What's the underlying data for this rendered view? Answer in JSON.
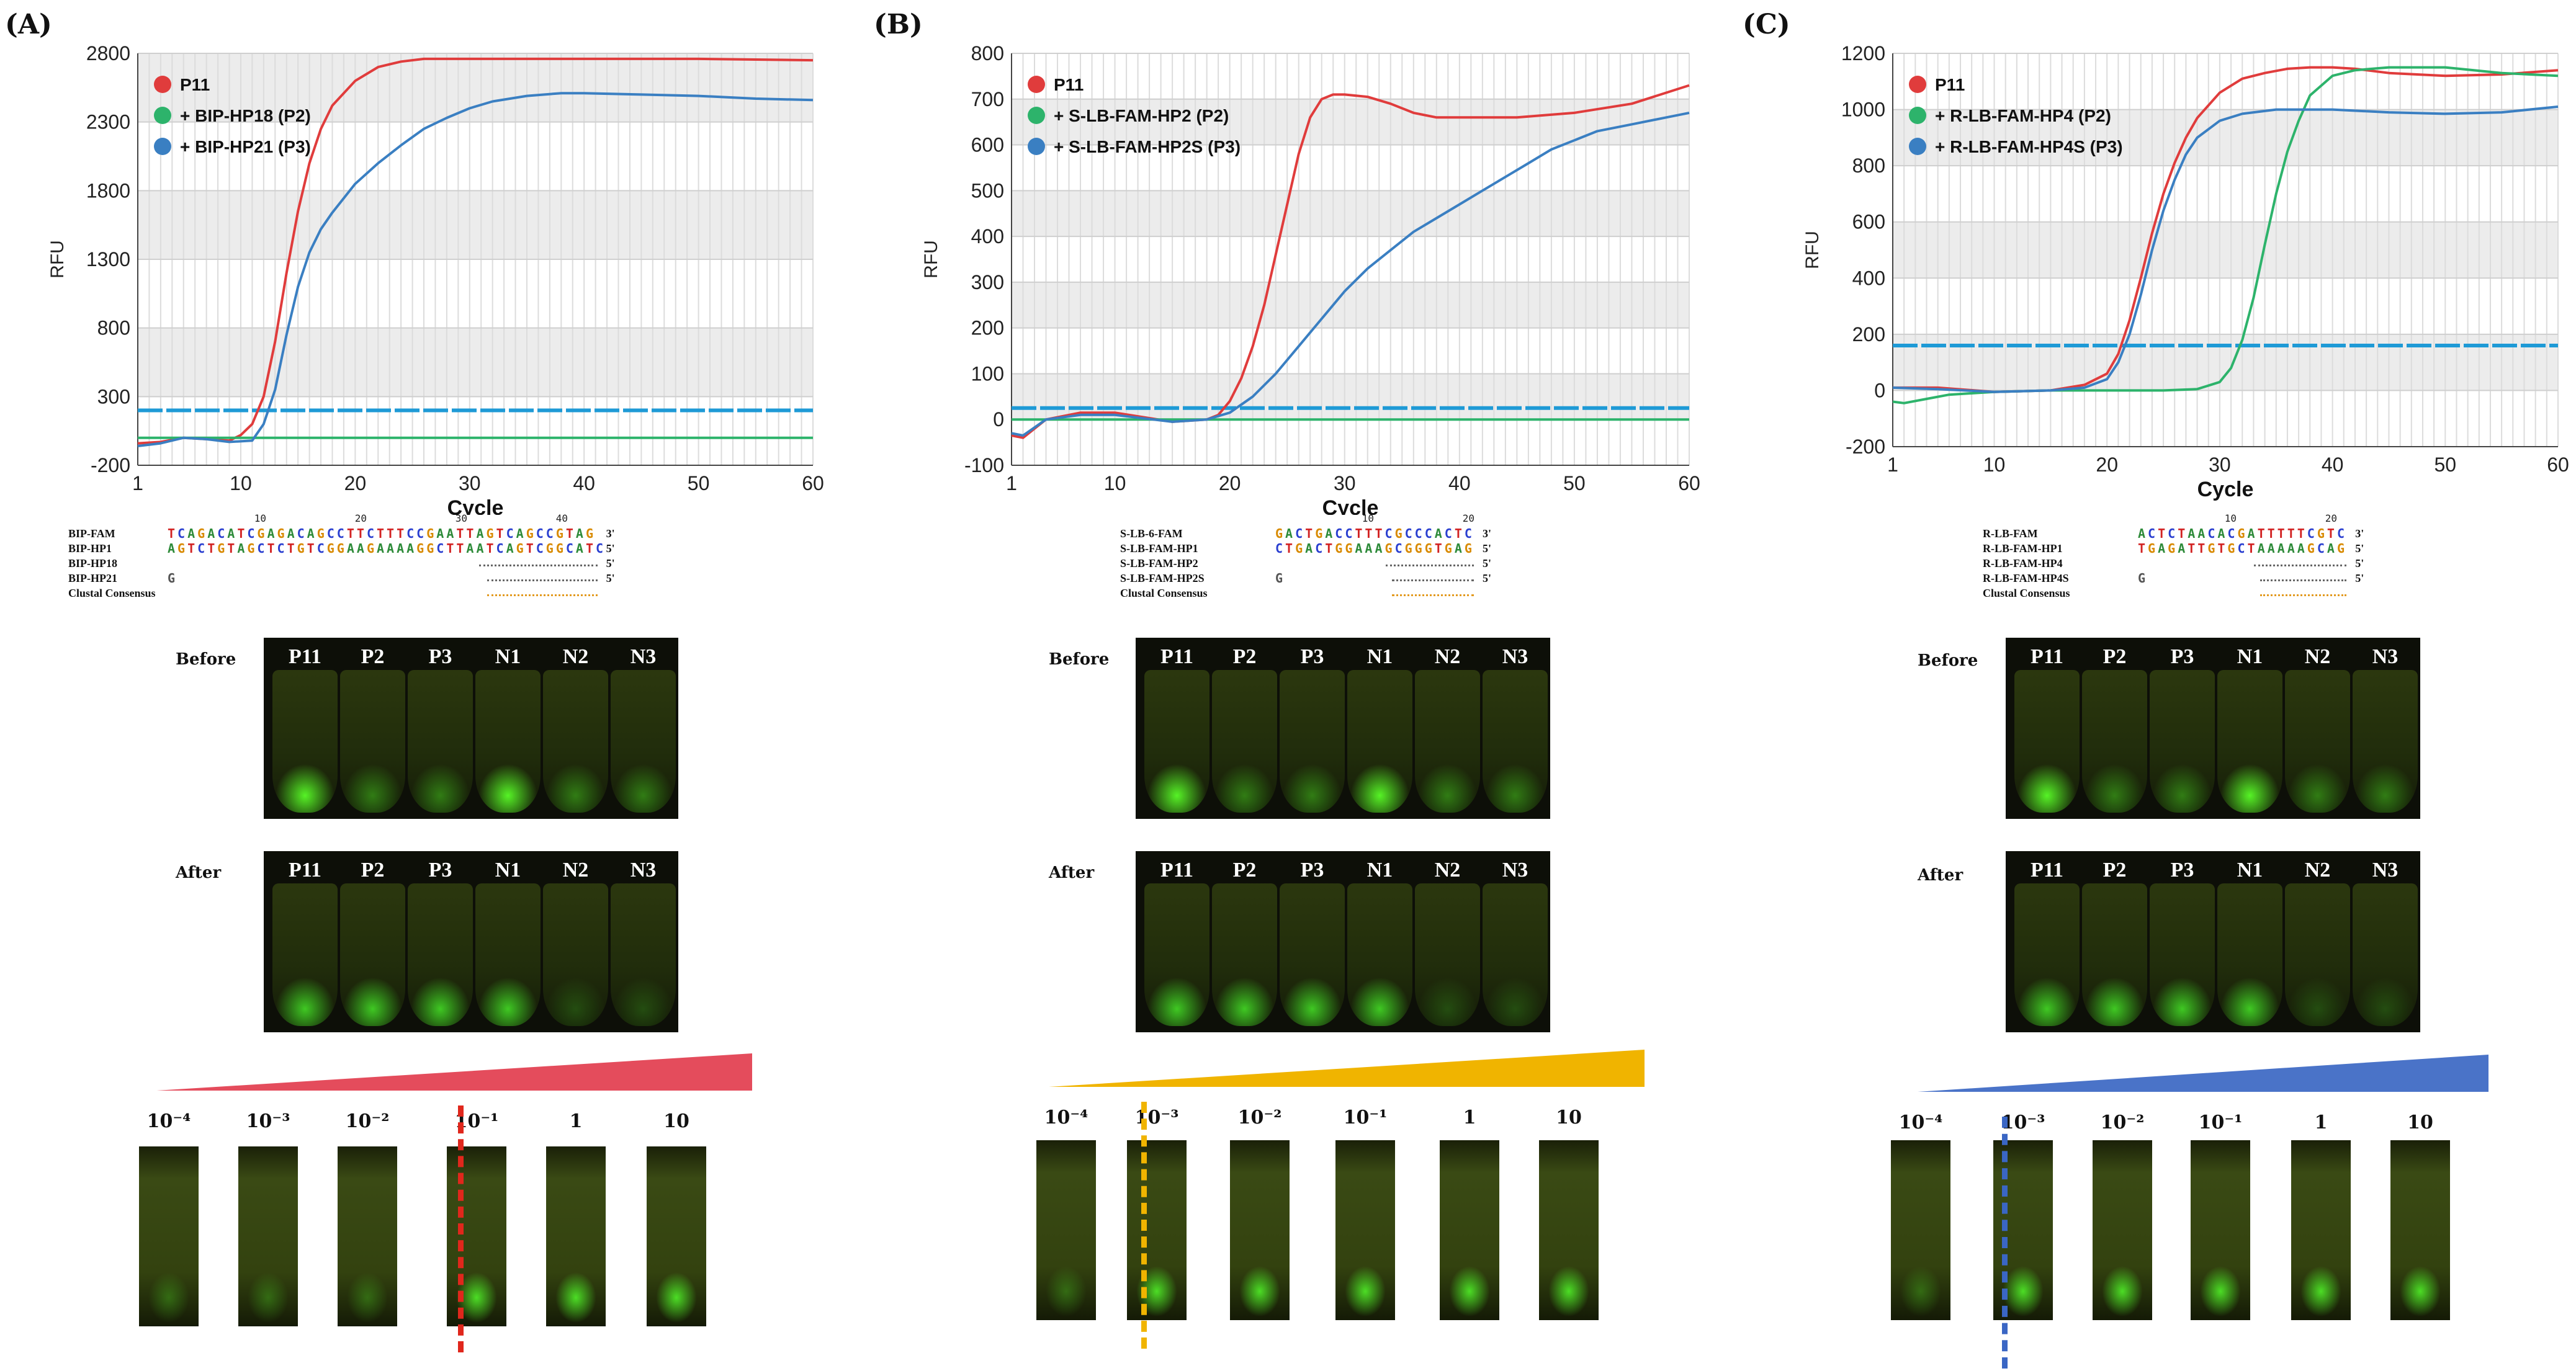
{
  "panels": [
    {
      "label": "(A)",
      "chart_data": {
        "type": "line",
        "ylabel": "RFU",
        "xlabel": "Cycle",
        "xlim": [
          1,
          60
        ],
        "ylim": [
          -200,
          2800
        ],
        "yticks": [
          -200,
          300,
          800,
          1300,
          1800,
          2300,
          2800
        ],
        "ytick_labels": [
          "-200",
          "300",
          "800",
          "1300",
          "1800",
          "2300",
          "2800"
        ],
        "xticks": [
          1,
          10,
          20,
          30,
          40,
          50,
          60
        ],
        "xtick_labels": [
          "1",
          "10",
          "20",
          "30",
          "40",
          "50",
          "60"
        ],
        "threshold": 200,
        "series": [
          {
            "name": "P11",
            "color": "#e03c3c",
            "x": [
              1,
              3,
              5,
              7,
              9,
              10,
              11,
              12,
              13,
              14,
              15,
              16,
              17,
              18,
              20,
              22,
              24,
              26,
              28,
              30,
              35,
              40,
              50,
              60
            ],
            "y": [
              -40,
              -30,
              0,
              -10,
              -20,
              20,
              100,
              300,
              700,
              1200,
              1650,
              2000,
              2250,
              2420,
              2600,
              2700,
              2740,
              2760,
              2760,
              2760,
              2760,
              2760,
              2760,
              2750
            ]
          },
          {
            "name": "+ BIP-HP18 (P2)",
            "color": "#2db36b",
            "x": [
              1,
              5,
              10,
              20,
              30,
              40,
              50,
              60
            ],
            "y": [
              0,
              0,
              0,
              0,
              0,
              0,
              0,
              0
            ]
          },
          {
            "name": "+ BIP-HP21 (P3)",
            "color": "#3a7fc2",
            "x": [
              1,
              3,
              5,
              7,
              9,
              11,
              12,
              13,
              14,
              15,
              16,
              17,
              18,
              20,
              22,
              24,
              26,
              28,
              30,
              32,
              35,
              38,
              40,
              45,
              50,
              55,
              60
            ],
            "y": [
              -60,
              -40,
              0,
              -10,
              -30,
              -20,
              100,
              350,
              750,
              1100,
              1350,
              1520,
              1640,
              1850,
              2000,
              2130,
              2250,
              2330,
              2400,
              2450,
              2490,
              2510,
              2510,
              2500,
              2490,
              2470,
              2460
            ]
          }
        ]
      },
      "alignment": {
        "ruler": [
          "10",
          "20",
          "30",
          "40"
        ],
        "rows": [
          {
            "name": "BIP-FAM",
            "seq": "TCAGACATCGAGACAGCCTTCTTTCCGAATTAGTCAGCCGTAG",
            "end": "3'"
          },
          {
            "name": "BIP-HP1",
            "seq": "AGTCTGTAGCTCTGTCGGAAGAAAAGGCTTAATCAGTCGGCATC",
            "end": "5'"
          },
          {
            "name": "BIP-HP18",
            "seq": "",
            "end": "5'"
          },
          {
            "name": "BIP-HP21",
            "seq": "G",
            "end": "5'"
          },
          {
            "name": "Clustal Consensus",
            "seq": "",
            "end": ""
          }
        ]
      },
      "before_label": "Before",
      "after_label": "After",
      "tubes": [
        "P11",
        "P2",
        "P3",
        "N1",
        "N2",
        "N3"
      ],
      "dilutions": [
        "10⁻⁴",
        "10⁻³",
        "10⁻²",
        "10⁻¹",
        "1",
        "10"
      ],
      "wedge_color": "#e44c5c",
      "cutoff_color": "#e0271c"
    },
    {
      "label": "(B)",
      "chart_data": {
        "type": "line",
        "ylabel": "RFU",
        "xlabel": "Cycle",
        "xlim": [
          1,
          60
        ],
        "ylim": [
          -100,
          800
        ],
        "yticks": [
          -100,
          0,
          100,
          200,
          300,
          400,
          500,
          600,
          700,
          800
        ],
        "ytick_labels": [
          "-100",
          "0",
          "100",
          "200",
          "300",
          "400",
          "500",
          "600",
          "700",
          "800"
        ],
        "xticks": [
          1,
          10,
          20,
          30,
          40,
          50,
          60
        ],
        "xtick_labels": [
          "1",
          "10",
          "20",
          "30",
          "40",
          "50",
          "60"
        ],
        "threshold": 25,
        "series": [
          {
            "name": "P11",
            "color": "#e03c3c",
            "x": [
              1,
              2,
              4,
              7,
              10,
              15,
              18,
              19,
              20,
              21,
              22,
              23,
              24,
              25,
              26,
              27,
              28,
              29,
              30,
              32,
              34,
              36,
              38,
              40,
              45,
              50,
              55,
              60
            ],
            "y": [
              -35,
              -40,
              0,
              15,
              15,
              -5,
              0,
              10,
              40,
              90,
              160,
              250,
              360,
              470,
              580,
              660,
              700,
              710,
              710,
              705,
              690,
              670,
              660,
              660,
              660,
              670,
              690,
              730
            ]
          },
          {
            "name": "+ S-LB-FAM-HP2 (P2)",
            "color": "#2db36b",
            "x": [
              1,
              10,
              20,
              30,
              40,
              50,
              60
            ],
            "y": [
              0,
              0,
              0,
              0,
              0,
              0,
              0
            ]
          },
          {
            "name": "+ S-LB-FAM-HP2S (P3)",
            "color": "#3a7fc2",
            "x": [
              1,
              2,
              4,
              7,
              10,
              15,
              18,
              20,
              22,
              24,
              26,
              28,
              30,
              32,
              34,
              36,
              38,
              40,
              42,
              44,
              46,
              48,
              50,
              52,
              55,
              58,
              60
            ],
            "y": [
              -30,
              -35,
              0,
              10,
              10,
              -5,
              0,
              15,
              50,
              100,
              160,
              220,
              280,
              330,
              370,
              410,
              440,
              470,
              500,
              530,
              560,
              590,
              610,
              630,
              645,
              660,
              670
            ]
          }
        ]
      },
      "alignment": {
        "ruler": [
          "10",
          "20"
        ],
        "rows": [
          {
            "name": "S-LB-6-FAM",
            "seq": "GACTGACCTTTCGCCCACTC",
            "end": "3'"
          },
          {
            "name": "S-LB-FAM-HP1",
            "seq": "CTGACTGGAAAGCGGGTGAG",
            "end": "5'"
          },
          {
            "name": "S-LB-FAM-HP2",
            "seq": "",
            "end": "5'"
          },
          {
            "name": "S-LB-FAM-HP2S",
            "seq": "G",
            "end": "5'"
          },
          {
            "name": "Clustal Consensus",
            "seq": "",
            "end": ""
          }
        ]
      },
      "before_label": "Before",
      "after_label": "After",
      "tubes": [
        "P11",
        "P2",
        "P3",
        "N1",
        "N2",
        "N3"
      ],
      "dilutions": [
        "10⁻⁴",
        "10⁻³",
        "10⁻²",
        "10⁻¹",
        "1",
        "10"
      ],
      "wedge_color": "#f0b400",
      "cutoff_color": "#f0b400"
    },
    {
      "label": "(C)",
      "chart_data": {
        "type": "line",
        "ylabel": "RFU",
        "xlabel": "Cycle",
        "xlim": [
          1,
          60
        ],
        "ylim": [
          -200,
          1200
        ],
        "yticks": [
          -200,
          0,
          200,
          400,
          600,
          800,
          1000,
          1200
        ],
        "ytick_labels": [
          "-200",
          "0",
          "200",
          "400",
          "600",
          "800",
          "1000",
          "1200"
        ],
        "xticks": [
          1,
          10,
          20,
          30,
          40,
          50,
          60
        ],
        "xtick_labels": [
          "1",
          "10",
          "20",
          "30",
          "40",
          "50",
          "60"
        ],
        "threshold": 160,
        "series": [
          {
            "name": "P11",
            "color": "#e03c3c",
            "x": [
              1,
              5,
              10,
              15,
              18,
              20,
              21,
              22,
              23,
              24,
              25,
              26,
              27,
              28,
              30,
              32,
              34,
              36,
              38,
              40,
              42,
              45,
              50,
              55,
              60
            ],
            "y": [
              10,
              10,
              -5,
              0,
              20,
              60,
              130,
              250,
              400,
              560,
              700,
              810,
              900,
              970,
              1060,
              1110,
              1130,
              1145,
              1150,
              1150,
              1145,
              1130,
              1120,
              1125,
              1140
            ]
          },
          {
            "name": "+ R-LB-FAM-HP4 (P2)",
            "color": "#2db36b",
            "x": [
              1,
              2,
              4,
              6,
              10,
              15,
              20,
              25,
              28,
              30,
              31,
              32,
              33,
              34,
              35,
              36,
              37,
              38,
              40,
              42,
              45,
              50,
              55,
              60
            ],
            "y": [
              -40,
              -45,
              -30,
              -15,
              -5,
              0,
              0,
              0,
              5,
              30,
              80,
              180,
              330,
              520,
              700,
              850,
              960,
              1050,
              1120,
              1140,
              1150,
              1150,
              1130,
              1120
            ]
          },
          {
            "name": "+ R-LB-FAM-HP4S (P3)",
            "color": "#3a7fc2",
            "x": [
              1,
              5,
              10,
              15,
              18,
              20,
              21,
              22,
              23,
              24,
              25,
              26,
              27,
              28,
              30,
              32,
              35,
              40,
              45,
              50,
              55,
              60
            ],
            "y": [
              10,
              5,
              -5,
              0,
              10,
              40,
              100,
              200,
              340,
              500,
              640,
              750,
              840,
              900,
              960,
              985,
              1000,
              1000,
              990,
              985,
              990,
              1010
            ]
          }
        ]
      },
      "alignment": {
        "ruler": [
          "10",
          "20"
        ],
        "rows": [
          {
            "name": "R-LB-FAM",
            "seq": "ACTCTAACACGATTTTTCGTC",
            "end": "3'"
          },
          {
            "name": "R-LB-FAM-HP1",
            "seq": "TGAGATTGTGCTAAAAAGCAG",
            "end": "5'"
          },
          {
            "name": "R-LB-FAM-HP4",
            "seq": "",
            "end": "5'"
          },
          {
            "name": "R-LB-FAM-HP4S",
            "seq": "G",
            "end": "5'"
          },
          {
            "name": "Clustal Consensus",
            "seq": "",
            "end": ""
          }
        ]
      },
      "before_label": "Before",
      "after_label": "After",
      "tubes": [
        "P11",
        "P2",
        "P3",
        "N1",
        "N2",
        "N3"
      ],
      "dilutions": [
        "10⁻⁴",
        "10⁻³",
        "10⁻²",
        "10⁻¹",
        "1",
        "10"
      ],
      "wedge_color": "#4a73c8",
      "cutoff_color": "#3a66c4"
    }
  ]
}
